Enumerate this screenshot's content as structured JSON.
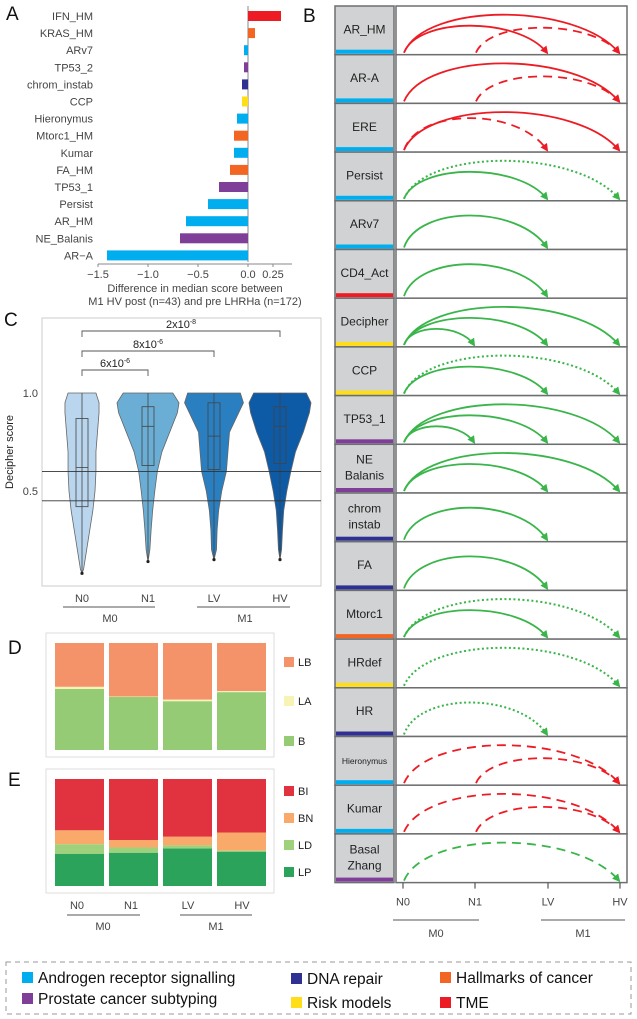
{
  "colors": {
    "androgen": "#00aeef",
    "dna": "#2e3192",
    "hallmarks": "#f26522",
    "subtyping": "#7f3f98",
    "risk": "#ffde17",
    "tme": "#ed1c24",
    "green": "#39b54a"
  },
  "panels": {
    "a": "A",
    "b": "B",
    "c": "C",
    "d": "D",
    "e": "E"
  },
  "legend": [
    {
      "label": "Androgen receptor signalling",
      "color": "#00aeef"
    },
    {
      "label": "DNA repair",
      "color": "#2e3192"
    },
    {
      "label": "Hallmarks of cancer",
      "color": "#f26522"
    },
    {
      "label": "Prostate cancer subtyping",
      "color": "#7f3f98"
    },
    {
      "label": "Risk models",
      "color": "#ffde17"
    },
    {
      "label": "TME",
      "color": "#ed1c24"
    }
  ],
  "chart_data": [
    {
      "id": "A",
      "type": "bar",
      "orientation": "horizontal",
      "xlabel": [
        "Difference in median score between",
        "M1 HV post (n=43) and pre LHRHa (n=172)"
      ],
      "xlim": [
        -1.5,
        0.35
      ],
      "xticks": [
        {
          "v": -1.5,
          "t": "−1.5"
        },
        {
          "v": -1.0,
          "t": "−1.0"
        },
        {
          "v": -0.5,
          "t": "−0.5"
        },
        {
          "v": 0.0,
          "t": "0.0"
        },
        {
          "v": 0.25,
          "t": "0.25"
        }
      ],
      "categories": [
        "IFN_HM",
        "KRAS_HM",
        "ARv7",
        "TP53_2",
        "chrom_instab",
        "CCP",
        "Hieronymus",
        "Mtorc1_HM",
        "Kumar",
        "FA_HM",
        "TP53_1",
        "Persist",
        "AR_HM",
        "NE_Balanis",
        "AR−A"
      ],
      "values": [
        0.33,
        0.07,
        -0.04,
        -0.04,
        -0.06,
        -0.06,
        -0.11,
        -0.14,
        -0.14,
        -0.18,
        -0.29,
        -0.4,
        -0.62,
        -0.68,
        -1.41
      ],
      "colors": [
        "#ed1c24",
        "#f26522",
        "#00aeef",
        "#7f3f98",
        "#2e3192",
        "#ffde17",
        "#00aeef",
        "#f26522",
        "#00aeef",
        "#f26522",
        "#7f3f98",
        "#00aeef",
        "#00aeef",
        "#7f3f98",
        "#00aeef"
      ]
    },
    {
      "id": "B",
      "type": "diagram",
      "x_labels": [
        "N0",
        "N1",
        "LV",
        "HV"
      ],
      "groups": [
        {
          "label": "M0"
        },
        {
          "label": "M1"
        }
      ],
      "rows": [
        {
          "label": [
            "AR_HM"
          ],
          "color": "#00aeef",
          "arcs": [
            {
              "from": 0,
              "to": 3,
              "style": "solid",
              "color": "#ed1c24"
            },
            {
              "from": 0,
              "to": 2,
              "style": "solid",
              "color": "#ed1c24"
            },
            {
              "from": 1,
              "to": 3,
              "style": "dashed",
              "color": "#ed1c24"
            }
          ]
        },
        {
          "label": [
            "AR-A"
          ],
          "color": "#00aeef",
          "arcs": [
            {
              "from": 0,
              "to": 3,
              "style": "solid",
              "color": "#ed1c24"
            },
            {
              "from": 1,
              "to": 3,
              "style": "dashed",
              "color": "#ed1c24"
            }
          ]
        },
        {
          "label": [
            "ERE"
          ],
          "color": "#00aeef",
          "arcs": [
            {
              "from": 0,
              "to": 3,
              "style": "solid",
              "color": "#ed1c24"
            },
            {
              "from": 0,
              "to": 2,
              "style": "dashed",
              "color": "#ed1c24"
            }
          ]
        },
        {
          "label": [
            "Persist"
          ],
          "color": "#00aeef",
          "arcs": [
            {
              "from": 0,
              "to": 3,
              "style": "dotted",
              "color": "#39b54a"
            },
            {
              "from": 0,
              "to": 2,
              "style": "solid",
              "color": "#39b54a"
            }
          ]
        },
        {
          "label": [
            "ARv7"
          ],
          "color": "#00aeef",
          "arcs": [
            {
              "from": 0,
              "to": 2,
              "style": "solid",
              "color": "#39b54a"
            }
          ]
        },
        {
          "label": [
            "CD4_Act"
          ],
          "color": "#ed1c24",
          "arcs": [
            {
              "from": 0,
              "to": 2,
              "style": "solid",
              "color": "#39b54a"
            }
          ]
        },
        {
          "label": [
            "Decipher"
          ],
          "color": "#ffde17",
          "arcs": [
            {
              "from": 0,
              "to": 3,
              "style": "solid",
              "color": "#39b54a"
            },
            {
              "from": 0,
              "to": 2,
              "style": "solid",
              "color": "#39b54a"
            },
            {
              "from": 0,
              "to": 1,
              "style": "solid",
              "color": "#39b54a"
            }
          ]
        },
        {
          "label": [
            "CCP"
          ],
          "color": "#ffde17",
          "arcs": [
            {
              "from": 0,
              "to": 3,
              "style": "dotted",
              "color": "#39b54a"
            },
            {
              "from": 0,
              "to": 2,
              "style": "solid",
              "color": "#39b54a"
            }
          ]
        },
        {
          "label": [
            "TP53_1"
          ],
          "color": "#7f3f98",
          "arcs": [
            {
              "from": 0,
              "to": 3,
              "style": "solid",
              "color": "#39b54a"
            },
            {
              "from": 0,
              "to": 2,
              "style": "solid",
              "color": "#39b54a"
            },
            {
              "from": 0,
              "to": 1,
              "style": "solid",
              "color": "#39b54a"
            }
          ]
        },
        {
          "label": [
            "NE",
            "Balanis"
          ],
          "color": "#7f3f98",
          "arcs": [
            {
              "from": 0,
              "to": 3,
              "style": "solid",
              "color": "#39b54a"
            },
            {
              "from": 0,
              "to": 2,
              "style": "solid",
              "color": "#39b54a"
            }
          ]
        },
        {
          "label": [
            "chrom",
            "instab"
          ],
          "color": "#2e3192",
          "arcs": [
            {
              "from": 0,
              "to": 2,
              "style": "solid",
              "color": "#39b54a"
            }
          ]
        },
        {
          "label": [
            "FA"
          ],
          "color": "#2e3192",
          "arcs": [
            {
              "from": 0,
              "to": 2,
              "style": "solid",
              "color": "#39b54a"
            }
          ]
        },
        {
          "label": [
            "Mtorc1"
          ],
          "color": "#f26522",
          "arcs": [
            {
              "from": 0,
              "to": 3,
              "style": "dotted",
              "color": "#39b54a"
            },
            {
              "from": 0,
              "to": 2,
              "style": "solid",
              "color": "#39b54a"
            }
          ]
        },
        {
          "label": [
            "HRdef"
          ],
          "color": "#ffde17",
          "arcs": [
            {
              "from": 0,
              "to": 3,
              "style": "dotted",
              "color": "#39b54a"
            }
          ]
        },
        {
          "label": [
            "HR"
          ],
          "color": "#2e3192",
          "arcs": [
            {
              "from": 0,
              "to": 2,
              "style": "dotted",
              "color": "#39b54a"
            }
          ]
        },
        {
          "label": [
            "Hieronymus"
          ],
          "color": "#00aeef",
          "small": true,
          "arcs": [
            {
              "from": 0,
              "to": 3,
              "style": "dashed",
              "color": "#ed1c24"
            },
            {
              "from": 1,
              "to": 3,
              "style": "dashed",
              "color": "#ed1c24"
            }
          ]
        },
        {
          "label": [
            "Kumar"
          ],
          "color": "#00aeef",
          "arcs": [
            {
              "from": 0,
              "to": 3,
              "style": "dashed",
              "color": "#ed1c24"
            },
            {
              "from": 1,
              "to": 3,
              "style": "dashed",
              "color": "#ed1c24"
            }
          ]
        },
        {
          "label": [
            "Basal",
            "Zhang"
          ],
          "color": "#7f3f98",
          "arcs": [
            {
              "from": 0,
              "to": 3,
              "style": "dashed",
              "color": "#39b54a"
            }
          ]
        }
      ]
    },
    {
      "id": "C",
      "type": "violin",
      "ylabel": "Decipher score",
      "ylim": [
        0.05,
        1.3
      ],
      "yticks": [
        {
          "v": 1.0,
          "t": "1.0"
        },
        {
          "v": 0.5,
          "t": "0.5"
        }
      ],
      "hlines": [
        0.6,
        0.45
      ],
      "categories": [
        "N0",
        "N1",
        "LV",
        "HV"
      ],
      "groups": [
        {
          "label": "M0"
        },
        {
          "label": "M1"
        }
      ],
      "colors": [
        "#b9d6ee",
        "#6aaed6",
        "#2a7fc1",
        "#0d5aa7"
      ],
      "box": [
        {
          "min": 0.08,
          "q1": 0.42,
          "median": 0.62,
          "q3": 0.87,
          "max": 1.0
        },
        {
          "min": 0.14,
          "q1": 0.63,
          "median": 0.83,
          "q3": 0.93,
          "max": 1.0
        },
        {
          "min": 0.15,
          "q1": 0.61,
          "median": 0.78,
          "q3": 0.95,
          "max": 1.0
        },
        {
          "min": 0.15,
          "q1": 0.64,
          "median": 0.83,
          "q3": 0.93,
          "max": 1.0
        }
      ],
      "density_levels": [
        1.0,
        0.95,
        0.9,
        0.8,
        0.7,
        0.6,
        0.5,
        0.4,
        0.3,
        0.2,
        0.1
      ],
      "density": [
        [
          0.45,
          0.55,
          0.55,
          0.5,
          0.45,
          0.45,
          0.42,
          0.35,
          0.25,
          0.15,
          0.05
        ],
        [
          0.8,
          1.0,
          0.95,
          0.7,
          0.45,
          0.3,
          0.22,
          0.15,
          0.1,
          0.06,
          0.0
        ],
        [
          0.85,
          0.95,
          0.8,
          0.5,
          0.45,
          0.4,
          0.25,
          0.15,
          0.1,
          0.08,
          0.0
        ],
        [
          0.85,
          1.0,
          0.95,
          0.75,
          0.5,
          0.35,
          0.22,
          0.12,
          0.08,
          0.05,
          0.0
        ]
      ],
      "significance": [
        {
          "from": 0,
          "to": 3,
          "base": "2x10",
          "exp": "-8"
        },
        {
          "from": 0,
          "to": 2,
          "base": "8x10",
          "exp": "-6"
        },
        {
          "from": 0,
          "to": 1,
          "base": "6x10",
          "exp": "-6"
        }
      ]
    },
    {
      "id": "D",
      "type": "bar",
      "stacked": true,
      "unit": "fraction",
      "categories": [
        "N0",
        "N1",
        "LV",
        "HV"
      ],
      "series": [
        {
          "name": "LB",
          "color": "#f4936a",
          "values": [
            0.41,
            0.5,
            0.53,
            0.45
          ]
        },
        {
          "name": "LA",
          "color": "#f7f3b5",
          "values": [
            0.02,
            0.005,
            0.015,
            0.01
          ]
        },
        {
          "name": "B",
          "color": "#94cb74",
          "values": [
            0.57,
            0.495,
            0.455,
            0.54
          ]
        }
      ]
    },
    {
      "id": "E",
      "type": "bar",
      "stacked": true,
      "unit": "fraction",
      "categories": [
        "N0",
        "N1",
        "LV",
        "HV"
      ],
      "groups": [
        {
          "label": "M0"
        },
        {
          "label": "M1"
        }
      ],
      "series": [
        {
          "name": "BI",
          "color": "#e0323f",
          "values": [
            0.48,
            0.57,
            0.54,
            0.5
          ]
        },
        {
          "name": "BN",
          "color": "#f9a96a",
          "values": [
            0.13,
            0.07,
            0.08,
            0.17
          ]
        },
        {
          "name": "LD",
          "color": "#9fd17c",
          "values": [
            0.09,
            0.05,
            0.03,
            0.01
          ]
        },
        {
          "name": "LP",
          "color": "#2ba35a",
          "values": [
            0.3,
            0.31,
            0.35,
            0.32
          ]
        }
      ]
    }
  ]
}
